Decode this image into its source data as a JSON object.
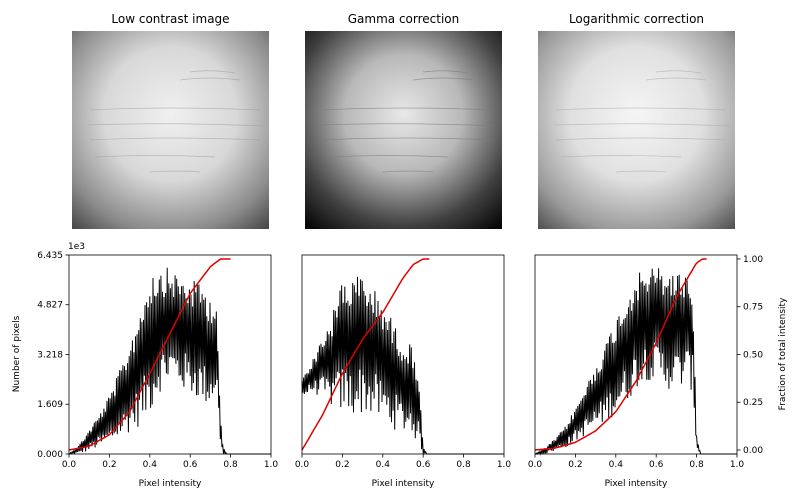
{
  "image_titles": [
    "Low contrast image",
    "Gamma correction",
    "Logarithmic correction"
  ],
  "chart_data": [
    {
      "type": "histogram",
      "panel": "Low contrast image",
      "xlim": [
        0,
        1
      ],
      "ylim": [
        0,
        6435
      ],
      "x_ticks": [
        "0.0",
        "0.2",
        "0.4",
        "0.6",
        "0.8",
        "1.0"
      ],
      "y_ticks": [
        "0.000",
        "1.609",
        "3.218",
        "4.827",
        "6.435"
      ],
      "y_tick_values": [
        0,
        1609,
        3218,
        4827,
        6435
      ],
      "y_offset_label": "1e3",
      "xlabel": "Pixel intensity",
      "ylabel": "Number of pixels",
      "histogram_envelope": {
        "x": [
          0.0,
          0.05,
          0.1,
          0.15,
          0.2,
          0.25,
          0.3,
          0.35,
          0.4,
          0.45,
          0.5,
          0.55,
          0.6,
          0.65,
          0.7,
          0.73,
          0.75,
          0.76,
          0.78,
          1.0
        ],
        "upper": [
          0,
          300,
          800,
          1300,
          1900,
          2700,
          3600,
          4700,
          5900,
          6100,
          6000,
          5800,
          5600,
          5600,
          5100,
          5000,
          1200,
          300,
          0,
          0
        ],
        "lower": [
          0,
          0,
          100,
          200,
          300,
          500,
          700,
          900,
          1300,
          2000,
          2300,
          2100,
          1900,
          1700,
          1500,
          2000,
          300,
          0,
          0,
          0
        ]
      },
      "cdf": {
        "x": [
          0.0,
          0.1,
          0.2,
          0.3,
          0.4,
          0.5,
          0.6,
          0.7,
          0.75,
          0.8
        ],
        "y": [
          0.0,
          0.02,
          0.08,
          0.2,
          0.4,
          0.61,
          0.82,
          0.96,
          1.0,
          1.0
        ]
      }
    },
    {
      "type": "histogram",
      "panel": "Gamma correction",
      "xlim": [
        0,
        1
      ],
      "ylim": [
        0,
        6435
      ],
      "x_ticks": [
        "0.0",
        "0.2",
        "0.4",
        "0.6",
        "0.8",
        "1.0"
      ],
      "xlabel": "Pixel intensity",
      "histogram_envelope": {
        "x": [
          0.0,
          0.05,
          0.1,
          0.15,
          0.2,
          0.25,
          0.3,
          0.35,
          0.4,
          0.45,
          0.5,
          0.55,
          0.58,
          0.6,
          0.62,
          0.65,
          1.0
        ],
        "upper": [
          2500,
          3000,
          3800,
          4500,
          5800,
          5700,
          5900,
          5400,
          5000,
          4300,
          3700,
          3500,
          2500,
          200,
          0,
          0,
          0
        ],
        "lower": [
          1800,
          2000,
          1800,
          1500,
          1300,
          1200,
          1300,
          1200,
          1000,
          800,
          700,
          600,
          200,
          0,
          0,
          0,
          0
        ]
      },
      "cdf": {
        "x": [
          0.0,
          0.1,
          0.2,
          0.3,
          0.4,
          0.5,
          0.55,
          0.6,
          0.63
        ],
        "y": [
          0.0,
          0.18,
          0.4,
          0.58,
          0.72,
          0.9,
          0.97,
          1.0,
          1.0
        ]
      }
    },
    {
      "type": "histogram",
      "panel": "Logarithmic correction",
      "xlim": [
        0,
        1
      ],
      "ylim": [
        0,
        6435
      ],
      "x_ticks": [
        "0.0",
        "0.2",
        "0.4",
        "0.6",
        "0.8",
        "1.0"
      ],
      "xlabel": "Pixel intensity",
      "y2_ticks": [
        "0.00",
        "0.25",
        "0.50",
        "0.75",
        "1.00"
      ],
      "y2_tick_values": [
        0,
        0.25,
        0.5,
        0.75,
        1.0
      ],
      "y2label": "Fraction of total intensity",
      "histogram_envelope": {
        "x": [
          0.0,
          0.05,
          0.1,
          0.15,
          0.2,
          0.25,
          0.3,
          0.35,
          0.4,
          0.45,
          0.5,
          0.55,
          0.6,
          0.65,
          0.7,
          0.75,
          0.78,
          0.8,
          0.82,
          1.0
        ],
        "upper": [
          0,
          200,
          500,
          900,
          1500,
          2200,
          2900,
          3600,
          4400,
          5100,
          5800,
          6000,
          6100,
          6000,
          5900,
          5900,
          5600,
          600,
          0,
          0
        ],
        "lower": [
          0,
          0,
          100,
          200,
          400,
          600,
          800,
          1000,
          1300,
          1600,
          2100,
          2400,
          2300,
          2100,
          2000,
          2200,
          2000,
          200,
          0,
          0
        ]
      },
      "cdf": {
        "x": [
          0.0,
          0.1,
          0.2,
          0.3,
          0.4,
          0.5,
          0.6,
          0.7,
          0.8,
          0.83,
          0.85
        ],
        "y": [
          0.0,
          0.01,
          0.04,
          0.1,
          0.2,
          0.36,
          0.56,
          0.8,
          0.98,
          1.0,
          1.0
        ]
      }
    }
  ]
}
